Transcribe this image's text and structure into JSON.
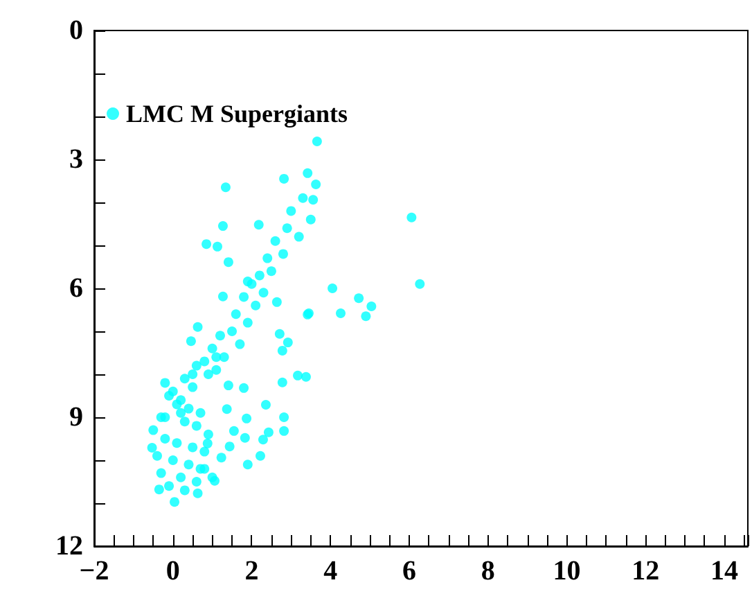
{
  "chart_data": {
    "type": "scatter",
    "xlim": [
      -2,
      14.6
    ],
    "ylim": [
      12,
      0
    ],
    "xticks": [
      -2,
      0,
      2,
      4,
      6,
      8,
      10,
      12,
      14
    ],
    "yticks": [
      0,
      3,
      6,
      9,
      12
    ],
    "grid": false,
    "legend": "top left",
    "marker": "circle",
    "series": [
      {
        "name": "LMC M Supergiants",
        "color": "#00ffff",
        "x": [
          3.66,
          1.34,
          2.82,
          3.42,
          3.63,
          3.56,
          1.27,
          0.85,
          1.13,
          1.41,
          2.18,
          4.05,
          6.06,
          6.27,
          4.72,
          5.04,
          4.26,
          4.9,
          3.45,
          3.42,
          2.71,
          2.92,
          2.78,
          0.63,
          0.46,
          1.27,
          2.64,
          3.17,
          3.38,
          2.78,
          1.8,
          1.41,
          2.36,
          2.82,
          2.82,
          1.87,
          1.55,
          2.43,
          2.29,
          1.83,
          2.22,
          1.9,
          1.44,
          1.06,
          0.63,
          0.04,
          -0.35,
          -0.53,
          0.88,
          1.23,
          1.37,
          1.9,
          3.3,
          3.0,
          3.5,
          2.9,
          3.2,
          2.6,
          2.8,
          2.4,
          2.5,
          2.2,
          2.0,
          2.3,
          1.8,
          2.1,
          1.6,
          1.9,
          1.5,
          1.2,
          1.7,
          1.0,
          1.3,
          0.8,
          1.1,
          0.6,
          0.9,
          0.3,
          0.5,
          0.0,
          0.2,
          -0.2,
          -0.1,
          0.4,
          0.7,
          0.1,
          -0.3,
          0.3,
          0.6,
          0.9,
          -0.2,
          0.1,
          0.5,
          0.8,
          -0.4,
          0.0,
          0.4,
          0.7,
          -0.3,
          0.2,
          0.6,
          1.0,
          -0.1,
          0.3,
          -0.5,
          -0.2,
          0.2,
          0.5,
          0.8,
          1.1
        ],
        "values": [
          2.58,
          3.65,
          3.45,
          3.32,
          3.58,
          3.94,
          4.55,
          4.97,
          5.03,
          5.39,
          4.52,
          6.0,
          4.35,
          5.9,
          6.23,
          6.42,
          6.58,
          6.65,
          6.58,
          6.61,
          7.06,
          7.26,
          7.45,
          6.9,
          7.23,
          6.19,
          6.32,
          8.03,
          8.06,
          8.19,
          8.32,
          8.26,
          8.71,
          9.0,
          9.32,
          9.03,
          9.32,
          9.35,
          9.52,
          9.48,
          9.9,
          10.1,
          9.68,
          10.48,
          10.77,
          10.97,
          10.68,
          9.71,
          9.61,
          9.94,
          8.81,
          5.84,
          3.9,
          4.2,
          4.4,
          4.6,
          4.8,
          4.9,
          5.2,
          5.3,
          5.6,
          5.7,
          5.9,
          6.1,
          6.2,
          6.4,
          6.6,
          6.8,
          7.0,
          7.1,
          7.3,
          7.4,
          7.6,
          7.7,
          7.9,
          7.8,
          8.0,
          8.1,
          8.3,
          8.4,
          8.6,
          8.2,
          8.5,
          8.8,
          8.9,
          8.7,
          9.0,
          9.1,
          9.2,
          9.4,
          9.5,
          9.6,
          9.7,
          9.8,
          9.9,
          10.0,
          10.1,
          10.2,
          10.3,
          10.4,
          10.5,
          10.4,
          10.6,
          10.7,
          9.3,
          9.0,
          8.9,
          8.0,
          10.2,
          7.6
        ]
      }
    ]
  }
}
